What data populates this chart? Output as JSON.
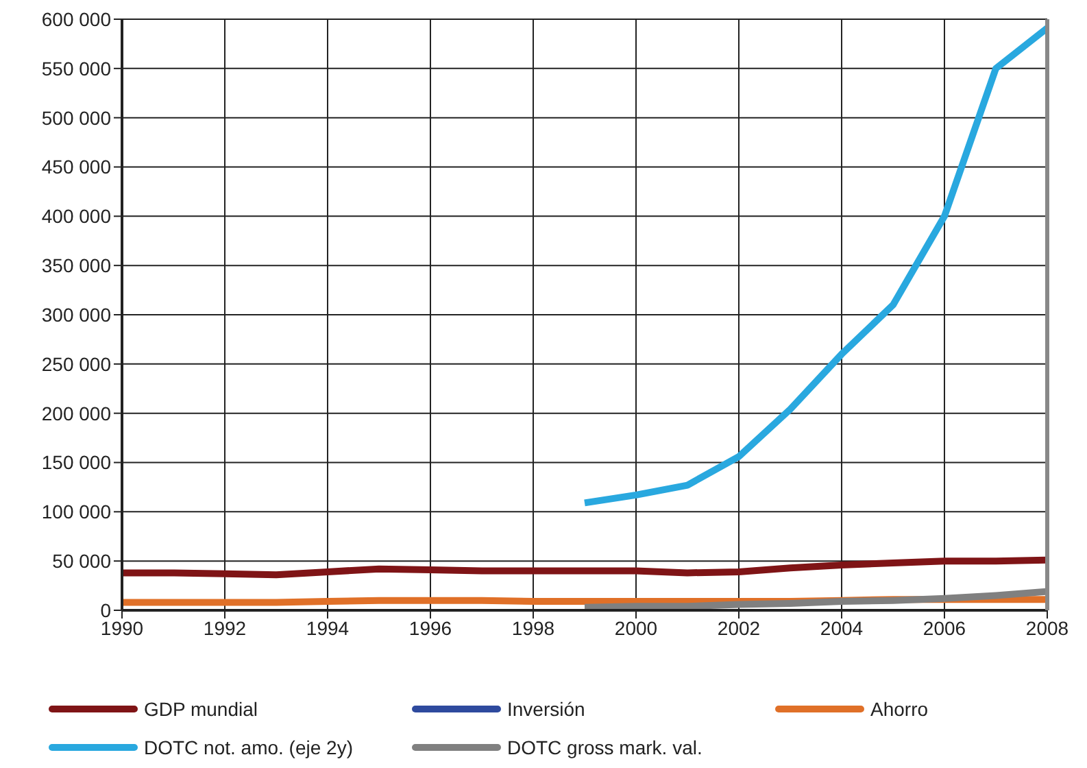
{
  "chart_data": {
    "type": "line",
    "x": [
      1990,
      1991,
      1992,
      1993,
      1994,
      1995,
      1996,
      1997,
      1998,
      1999,
      2000,
      2001,
      2002,
      2003,
      2004,
      2005,
      2006,
      2007,
      2008
    ],
    "series": [
      {
        "name": "GDP mundial",
        "color": "#7f1416",
        "values": [
          38000,
          38000,
          37000,
          36000,
          39000,
          42000,
          41000,
          40000,
          40000,
          40000,
          40000,
          38000,
          39000,
          43000,
          46000,
          48000,
          50000,
          50000,
          51000
        ]
      },
      {
        "name": "Inversión",
        "color": "#2e4a9e",
        "values": [
          null,
          null,
          null,
          null,
          null,
          null,
          null,
          null,
          null,
          null,
          null,
          null,
          null,
          null,
          null,
          null,
          null,
          null,
          null
        ]
      },
      {
        "name": "Ahorro",
        "color": "#e07028",
        "values": [
          8000,
          8000,
          8000,
          8000,
          9000,
          10000,
          10000,
          10000,
          9000,
          9000,
          9000,
          9000,
          9000,
          9000,
          10000,
          11000,
          11000,
          11000,
          11000
        ]
      },
      {
        "name": "DOTC not. amo. (eje 2y)",
        "color": "#29a8df",
        "values": [
          null,
          null,
          null,
          null,
          null,
          null,
          null,
          null,
          null,
          109000,
          117000,
          127000,
          156000,
          204000,
          260000,
          310000,
          400000,
          550000,
          591000
        ]
      },
      {
        "name": "DOTC gross mark. val.",
        "color": "#808080",
        "values": [
          null,
          null,
          null,
          null,
          null,
          null,
          null,
          null,
          null,
          3000,
          4000,
          4000,
          6000,
          7000,
          9000,
          10000,
          12000,
          15000,
          19000
        ]
      }
    ],
    "xlim": [
      1990,
      2008
    ],
    "xticks": [
      1990,
      1992,
      1994,
      1996,
      1998,
      2000,
      2002,
      2004,
      2006,
      2008
    ],
    "ylim": [
      0,
      600000
    ],
    "yticks": [
      {
        "value": 0,
        "label": "0"
      },
      {
        "value": 50000,
        "label": "50 000"
      },
      {
        "value": 100000,
        "label": "100 000"
      },
      {
        "value": 150000,
        "label": "150 000"
      },
      {
        "value": 200000,
        "label": "200 000"
      },
      {
        "value": 250000,
        "label": "250 000"
      },
      {
        "value": 300000,
        "label": "300 000"
      },
      {
        "value": 350000,
        "label": "350 000"
      },
      {
        "value": 400000,
        "label": "400 000"
      },
      {
        "value": 450000,
        "label": "450 000"
      },
      {
        "value": 500000,
        "label": "500 000"
      },
      {
        "value": 550000,
        "label": "550 000"
      },
      {
        "value": 600000,
        "label": "600 000"
      }
    ],
    "grid": true,
    "legend": "bottom",
    "marker": "none",
    "line_style": "solid"
  }
}
